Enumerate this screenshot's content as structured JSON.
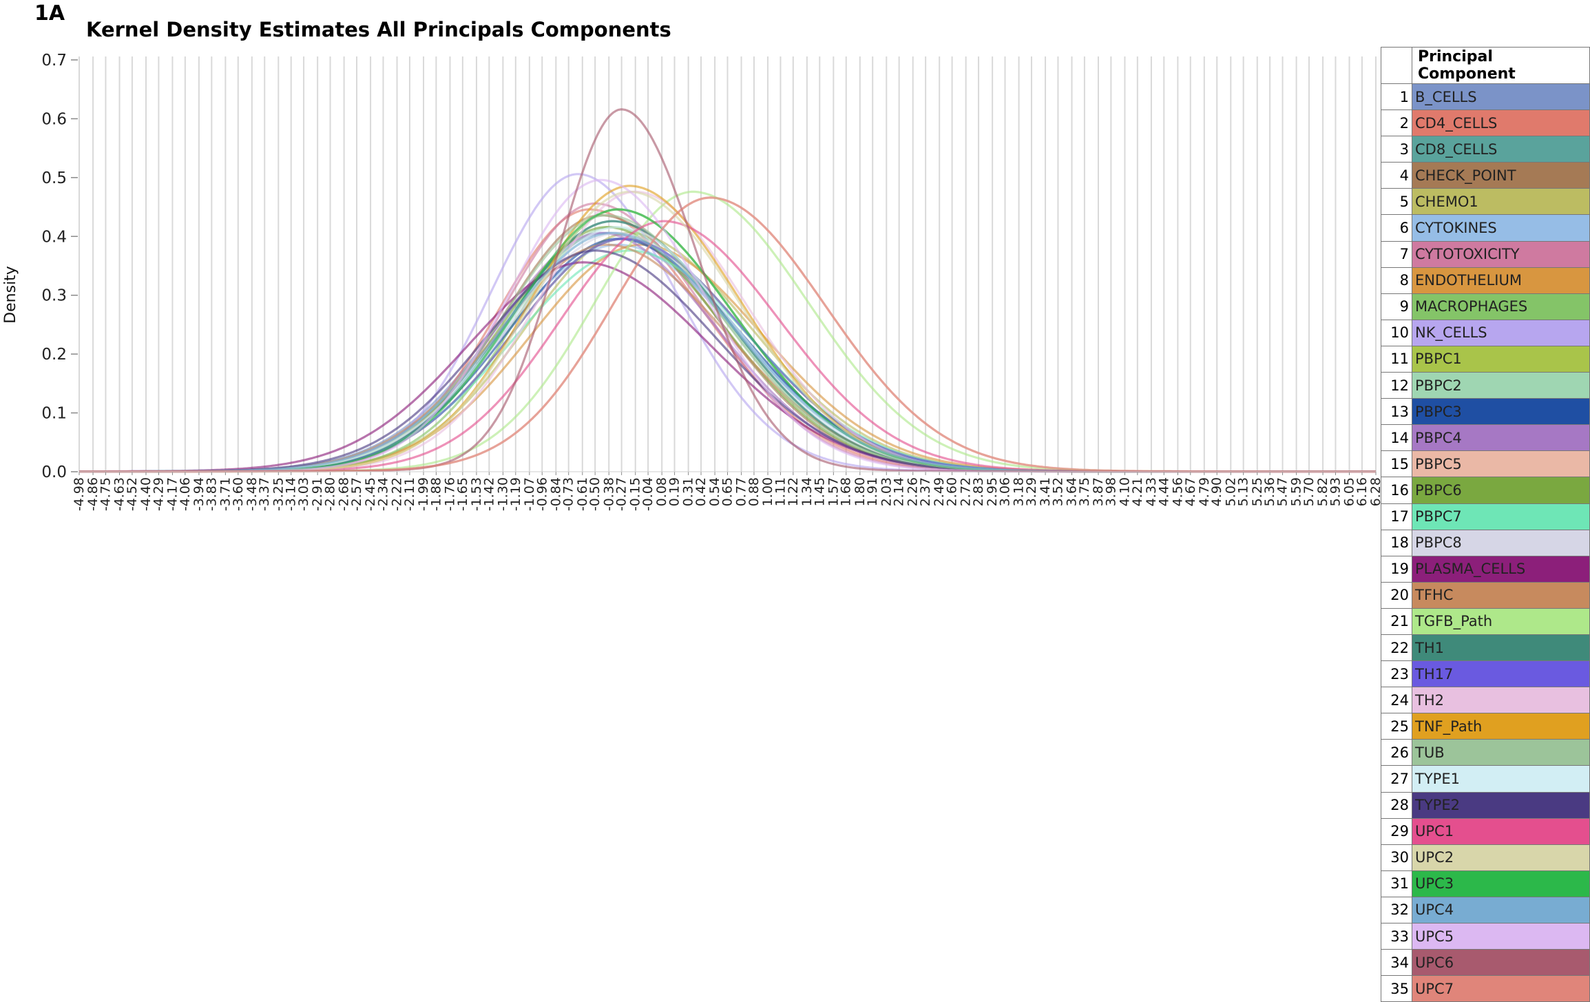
{
  "panel_label": "1A",
  "chart_data": {
    "type": "line",
    "title": "Kernel Density Estimates All Principals Components",
    "xlabel": "",
    "ylabel": "Density",
    "ylim": [
      0,
      0.7
    ],
    "y_ticks": [
      "0.0",
      "0.1",
      "0.2",
      "0.3",
      "0.4",
      "0.5",
      "0.6",
      "0.7"
    ],
    "x_ticks": [
      "-4.98",
      "-4.86",
      "-4.75",
      "-4.63",
      "-4.52",
      "-4.40",
      "-4.29",
      "-4.17",
      "-4.06",
      "-3.94",
      "-3.83",
      "-3.71",
      "-3.60",
      "-3.48",
      "-3.37",
      "-3.25",
      "-3.14",
      "-3.03",
      "-2.91",
      "-2.80",
      "-2.68",
      "-2.57",
      "-2.45",
      "-2.34",
      "-2.22",
      "-2.11",
      "-1.99",
      "-1.88",
      "-1.76",
      "-1.65",
      "-1.53",
      "-1.42",
      "-1.30",
      "-1.19",
      "-1.07",
      "-0.96",
      "-0.84",
      "-0.73",
      "-0.61",
      "-0.50",
      "-0.38",
      "-0.27",
      "-0.15",
      "-0.04",
      "0.08",
      "0.19",
      "0.31",
      "0.42",
      "0.54",
      "0.65",
      "0.77",
      "0.88",
      "1.00",
      "1.11",
      "1.22",
      "1.34",
      "1.45",
      "1.57",
      "1.68",
      "1.80",
      "1.91",
      "2.03",
      "2.14",
      "2.26",
      "2.37",
      "2.49",
      "2.60",
      "2.72",
      "2.83",
      "2.95",
      "3.06",
      "3.18",
      "3.29",
      "3.41",
      "3.52",
      "3.64",
      "3.75",
      "3.87",
      "3.98",
      "4.10",
      "4.21",
      "4.33",
      "4.44",
      "4.56",
      "4.67",
      "4.79",
      "4.90",
      "5.02",
      "5.13",
      "5.25",
      "5.36",
      "5.47",
      "5.59",
      "5.70",
      "5.82",
      "5.93",
      "6.05",
      "6.16",
      "6.28"
    ],
    "grid": "vertical",
    "legend_title": "Principal Component",
    "legend_position": "right",
    "series": [
      {
        "name": "B_CELLS",
        "color": "#7b93c8",
        "peak_x": -0.4,
        "peak_y": 0.4,
        "sd_left": 0.95,
        "sd_right": 1.1
      },
      {
        "name": "CD4_CELLS",
        "color": "#e07a6c",
        "peak_x": -0.55,
        "peak_y": 0.44,
        "sd_left": 0.8,
        "sd_right": 1.0
      },
      {
        "name": "CD8_CELLS",
        "color": "#5aa39c",
        "peak_x": -0.35,
        "peak_y": 0.42,
        "sd_left": 0.9,
        "sd_right": 1.0
      },
      {
        "name": "CHECK_POINT",
        "color": "#a57a55",
        "peak_x": -0.45,
        "peak_y": 0.43,
        "sd_left": 0.85,
        "sd_right": 1.0
      },
      {
        "name": "CHEMO1",
        "color": "#bcbc62",
        "peak_x": -0.2,
        "peak_y": 0.4,
        "sd_left": 0.9,
        "sd_right": 1.05
      },
      {
        "name": "CYTOKINES",
        "color": "#96bde6",
        "peak_x": -0.3,
        "peak_y": 0.38,
        "sd_left": 1.0,
        "sd_right": 1.05
      },
      {
        "name": "CYTOTOXICITY",
        "color": "#cf7aa0",
        "peak_x": -0.5,
        "peak_y": 0.45,
        "sd_left": 0.8,
        "sd_right": 0.95
      },
      {
        "name": "ENDOTHELIUM",
        "color": "#d89640",
        "peak_x": -0.1,
        "peak_y": 0.38,
        "sd_left": 0.95,
        "sd_right": 1.05
      },
      {
        "name": "MACROPHAGES",
        "color": "#84c468",
        "peak_x": -0.3,
        "peak_y": 0.44,
        "sd_left": 0.85,
        "sd_right": 1.0
      },
      {
        "name": "NK_CELLS",
        "color": "#b7a6ef",
        "peak_x": -0.65,
        "peak_y": 0.5,
        "sd_left": 0.75,
        "sd_right": 0.85
      },
      {
        "name": "PBPC1",
        "color": "#a9c44a",
        "peak_x": -0.25,
        "peak_y": 0.39,
        "sd_left": 0.95,
        "sd_right": 1.05
      },
      {
        "name": "PBPC2",
        "color": "#9fd6b2",
        "peak_x": -0.35,
        "peak_y": 0.41,
        "sd_left": 0.9,
        "sd_right": 1.0
      },
      {
        "name": "PBPC3",
        "color": "#1f4fa3",
        "peak_x": -0.3,
        "peak_y": 0.39,
        "sd_left": 0.95,
        "sd_right": 1.05
      },
      {
        "name": "PBPC4",
        "color": "#a678c4",
        "peak_x": -0.45,
        "peak_y": 0.4,
        "sd_left": 0.9,
        "sd_right": 1.0
      },
      {
        "name": "PBPC5",
        "color": "#eab8a6",
        "peak_x": 0.5,
        "peak_y": 0.46,
        "sd_left": 0.85,
        "sd_right": 1.0
      },
      {
        "name": "PBPC6",
        "color": "#7aa840",
        "peak_x": -0.4,
        "peak_y": 0.41,
        "sd_left": 0.9,
        "sd_right": 1.0
      },
      {
        "name": "PBPC7",
        "color": "#6ee6b6",
        "peak_x": -0.2,
        "peak_y": 0.37,
        "sd_left": 1.0,
        "sd_right": 1.05
      },
      {
        "name": "PBPC8",
        "color": "#d6d6e6",
        "peak_x": -0.3,
        "peak_y": 0.4,
        "sd_left": 0.95,
        "sd_right": 1.0
      },
      {
        "name": "PLASMA_CELLS",
        "color": "#8c1f7a",
        "peak_x": -0.6,
        "peak_y": 0.35,
        "sd_left": 1.0,
        "sd_right": 1.1
      },
      {
        "name": "TFHC",
        "color": "#c78a5e",
        "peak_x": -0.4,
        "peak_y": 0.38,
        "sd_left": 0.95,
        "sd_right": 1.05
      },
      {
        "name": "TGFB_Path",
        "color": "#aee88a",
        "peak_x": 0.35,
        "peak_y": 0.47,
        "sd_left": 0.85,
        "sd_right": 1.0
      },
      {
        "name": "TH1",
        "color": "#3f8a7a",
        "peak_x": -0.35,
        "peak_y": 0.42,
        "sd_left": 0.9,
        "sd_right": 1.0
      },
      {
        "name": "TH17",
        "color": "#6a5ae0",
        "peak_x": -0.25,
        "peak_y": 0.39,
        "sd_left": 0.95,
        "sd_right": 1.05
      },
      {
        "name": "TH2",
        "color": "#e8c0e0",
        "peak_x": -0.15,
        "peak_y": 0.47,
        "sd_left": 0.85,
        "sd_right": 0.95
      },
      {
        "name": "TNF_Path",
        "color": "#e0a020",
        "peak_x": -0.2,
        "peak_y": 0.48,
        "sd_left": 0.85,
        "sd_right": 0.95
      },
      {
        "name": "TUB",
        "color": "#9cc49a",
        "peak_x": -0.4,
        "peak_y": 0.43,
        "sd_left": 0.9,
        "sd_right": 1.0
      },
      {
        "name": "TYPE1",
        "color": "#d2eef4",
        "peak_x": -0.3,
        "peak_y": 0.41,
        "sd_left": 0.95,
        "sd_right": 1.0
      },
      {
        "name": "TYPE2",
        "color": "#4a3a82",
        "peak_x": -0.5,
        "peak_y": 0.37,
        "sd_left": 0.95,
        "sd_right": 1.05
      },
      {
        "name": "UPC1",
        "color": "#e44f8e",
        "peak_x": 0.1,
        "peak_y": 0.42,
        "sd_left": 0.9,
        "sd_right": 1.0
      },
      {
        "name": "UPC2",
        "color": "#d8d6aa",
        "peak_x": -0.2,
        "peak_y": 0.47,
        "sd_left": 0.85,
        "sd_right": 0.95
      },
      {
        "name": "UPC3",
        "color": "#2cb84a",
        "peak_x": -0.3,
        "peak_y": 0.44,
        "sd_left": 0.9,
        "sd_right": 1.0
      },
      {
        "name": "UPC4",
        "color": "#78acd2",
        "peak_x": -0.35,
        "peak_y": 0.4,
        "sd_left": 0.95,
        "sd_right": 1.05
      },
      {
        "name": "UPC5",
        "color": "#dcb8f2",
        "peak_x": -0.45,
        "peak_y": 0.49,
        "sd_left": 0.8,
        "sd_right": 0.9
      },
      {
        "name": "UPC6",
        "color": "#a85a6e",
        "peak_x": -0.27,
        "peak_y": 0.61,
        "sd_left": 0.55,
        "sd_right": 0.65
      },
      {
        "name": "UPC7",
        "color": "#e0857a",
        "peak_x": 0.5,
        "peak_y": 0.46,
        "sd_left": 0.85,
        "sd_right": 1.0
      }
    ]
  }
}
